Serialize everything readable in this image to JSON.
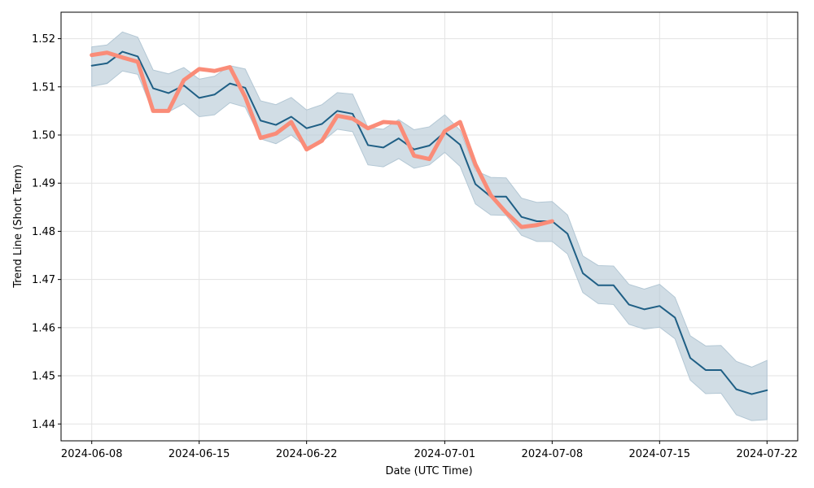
{
  "chart_data": {
    "type": "line",
    "title": "",
    "xlabel": "Date (UTC Time)",
    "ylabel": "Trend Line (Short Term)",
    "xlim": [
      "2024-06-06",
      "2024-07-24"
    ],
    "ylim": [
      1.4365,
      1.5255
    ],
    "grid": true,
    "x_ticks": [
      "2024-06-08",
      "2024-06-15",
      "2024-06-22",
      "2024-07-01",
      "2024-07-08",
      "2024-07-15",
      "2024-07-22"
    ],
    "y_ticks": [
      "1.44",
      "1.45",
      "1.46",
      "1.47",
      "1.48",
      "1.49",
      "1.50",
      "1.51",
      "1.52"
    ],
    "x": [
      "2024-06-08",
      "2024-06-09",
      "2024-06-10",
      "2024-06-11",
      "2024-06-12",
      "2024-06-13",
      "2024-06-14",
      "2024-06-15",
      "2024-06-16",
      "2024-06-17",
      "2024-06-18",
      "2024-06-19",
      "2024-06-20",
      "2024-06-21",
      "2024-06-22",
      "2024-06-23",
      "2024-06-24",
      "2024-06-25",
      "2024-06-26",
      "2024-06-27",
      "2024-06-28",
      "2024-06-29",
      "2024-06-30",
      "2024-07-01",
      "2024-07-02",
      "2024-07-03",
      "2024-07-04",
      "2024-07-05",
      "2024-07-06",
      "2024-07-07",
      "2024-07-08",
      "2024-07-09",
      "2024-07-10",
      "2024-07-11",
      "2024-07-12",
      "2024-07-13",
      "2024-07-14",
      "2024-07-15",
      "2024-07-16",
      "2024-07-17",
      "2024-07-18",
      "2024-07-19",
      "2024-07-20",
      "2024-07-21",
      "2024-07-22"
    ],
    "series": [
      {
        "role": "confidence-band",
        "color": "#b3c7d4",
        "upper": [
          1.5183,
          1.5187,
          1.5214,
          1.5203,
          1.5135,
          1.5127,
          1.514,
          1.5116,
          1.5122,
          1.5144,
          1.5137,
          1.5071,
          1.5063,
          1.5078,
          1.5052,
          1.5063,
          1.5088,
          1.5085,
          1.5015,
          1.5012,
          1.5032,
          1.5011,
          1.5017,
          1.5042,
          1.501,
          1.4926,
          1.4912,
          1.4911,
          1.4869,
          1.486,
          1.4862,
          1.4834,
          1.4749,
          1.4729,
          1.4728,
          1.469,
          1.468,
          1.469,
          1.4663,
          1.4583,
          1.4562,
          1.4563,
          1.453,
          1.4518,
          1.4532
        ],
        "lower": [
          1.5101,
          1.5107,
          1.5133,
          1.5126,
          1.5047,
          1.5048,
          1.5065,
          1.5038,
          1.5042,
          1.5067,
          1.5058,
          1.4992,
          1.4982,
          1.5,
          1.4975,
          1.4986,
          1.5012,
          1.5007,
          1.4938,
          1.4934,
          1.4951,
          1.4931,
          1.4938,
          1.4964,
          1.4935,
          1.4857,
          1.4834,
          1.4833,
          1.4792,
          1.4779,
          1.4779,
          1.4753,
          1.4673,
          1.465,
          1.4648,
          1.4607,
          1.4597,
          1.4601,
          1.4577,
          1.4491,
          1.4463,
          1.4464,
          1.4419,
          1.4407,
          1.4409
        ]
      },
      {
        "role": "trend-line",
        "color": "#1f5f85",
        "values": [
          1.5144,
          1.5149,
          1.5173,
          1.5163,
          1.5097,
          1.5087,
          1.5103,
          1.5077,
          1.5084,
          1.5107,
          1.5098,
          1.503,
          1.5021,
          1.5038,
          1.5014,
          1.5023,
          1.505,
          1.5044,
          1.4979,
          1.4974,
          1.4993,
          1.497,
          1.4978,
          1.5006,
          1.498,
          1.4898,
          1.4872,
          1.4872,
          1.483,
          1.4821,
          1.4821,
          1.4795,
          1.4713,
          1.4688,
          1.4688,
          1.4648,
          1.4638,
          1.4645,
          1.4621,
          1.4537,
          1.4512,
          1.4512,
          1.4472,
          1.4462,
          1.447
        ]
      },
      {
        "role": "actual",
        "color": "#fa8c78",
        "values": [
          1.5166,
          1.5171,
          1.5161,
          1.5152,
          1.505,
          1.505,
          1.5114,
          1.5137,
          1.5133,
          1.5141,
          1.5079,
          1.4994,
          1.5003,
          1.5027,
          1.497,
          1.4988,
          1.504,
          1.5034,
          1.5014,
          1.5027,
          1.5025,
          1.4957,
          1.495,
          1.5008,
          1.5027,
          1.4939,
          1.4875,
          1.4839,
          1.4809,
          1.4813,
          1.4821,
          null,
          null,
          null,
          null,
          null,
          null,
          null,
          null,
          null,
          null,
          null,
          null,
          null,
          null
        ]
      }
    ]
  }
}
